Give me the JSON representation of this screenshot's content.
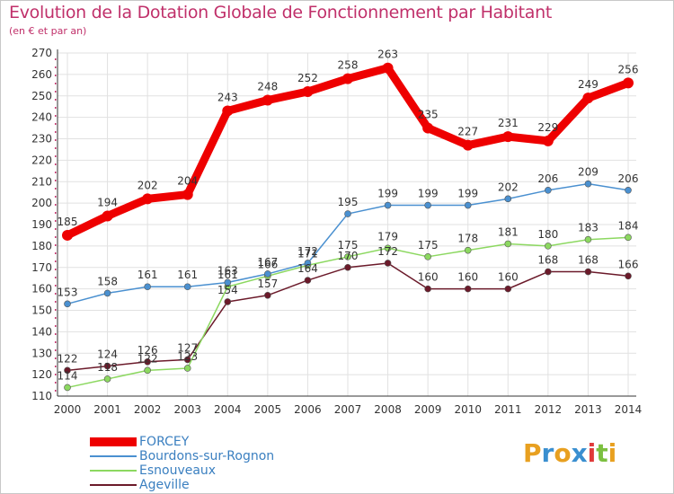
{
  "title": "Evolution de la Dotation Globale de Fonctionnement par Habitant",
  "subtitle": "(en € et par an)",
  "logo": {
    "text": "Proxiti",
    "letters": [
      "P",
      "r",
      "o",
      "x",
      "i",
      "t",
      "i"
    ],
    "colors": [
      "#e8a020",
      "#3a8fd0",
      "#e8a020",
      "#3a8fd0",
      "#e03a3a",
      "#7cc040",
      "#e8a020"
    ]
  },
  "colors": {
    "grid": "#e1e1e1",
    "axis": "#333333",
    "tick_text": "#333333",
    "value_text": "#333333",
    "accent": "#c0306a"
  },
  "chart_data": {
    "type": "line",
    "x": [
      "2000",
      "2001",
      "2002",
      "2003",
      "2004",
      "2005",
      "2006",
      "2007",
      "2008",
      "2009",
      "2010",
      "2011",
      "2012",
      "2013",
      "2014"
    ],
    "ylim": [
      110,
      270
    ],
    "yticks": [
      110,
      120,
      130,
      140,
      150,
      160,
      170,
      180,
      190,
      200,
      210,
      220,
      230,
      240,
      250,
      260,
      270
    ],
    "grid": true,
    "legend_position": "bottom-left",
    "series": [
      {
        "name": "FORCEY",
        "color": "#ee0000",
        "values": [
          185,
          194,
          202,
          204,
          243,
          248,
          252,
          258,
          263,
          235,
          227,
          231,
          229,
          249,
          256
        ]
      },
      {
        "name": "Bourdons-sur-Rognon",
        "color": "#4a90d0",
        "values": [
          153,
          158,
          161,
          161,
          163,
          167,
          172,
          195,
          199,
          199,
          199,
          202,
          206,
          209,
          206
        ]
      },
      {
        "name": "Esnouveaux",
        "color": "#8cd860",
        "values": [
          114,
          118,
          122,
          123,
          161,
          166,
          171,
          175,
          179,
          175,
          178,
          181,
          180,
          183,
          184
        ]
      },
      {
        "name": "Ageville",
        "color": "#6b1a2a",
        "values": [
          122,
          124,
          126,
          127,
          154,
          157,
          164,
          170,
          172,
          160,
          160,
          160,
          168,
          168,
          166
        ]
      }
    ]
  }
}
